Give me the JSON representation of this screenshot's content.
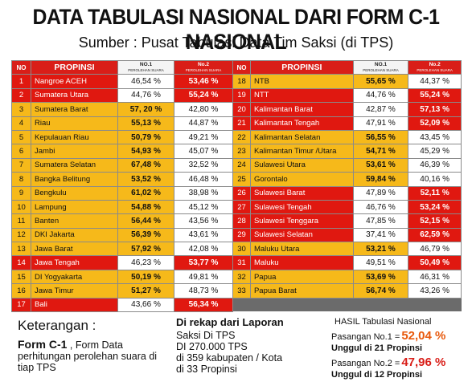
{
  "title": "DATA TABULASI NASIONAL DARI FORM C-1 NASIONAL",
  "subtitle": "Sumber : Pusat Tabulasi Data Tim Saksi (di TPS)",
  "table_headers": {
    "no": "NO",
    "propinsi": "PROPINSI",
    "no1": "NO.1",
    "no2": "No.2",
    "sub": "PEROLEHAN SUARA"
  },
  "left_rows": [
    {
      "no": "1",
      "name": "Nangroe ACEH",
      "v1": "46,54 %",
      "v2": "53,46 %",
      "win": 2
    },
    {
      "no": "2",
      "name": "Sumatera Utara",
      "v1": "44,76 %",
      "v2": "55,24 %",
      "win": 2
    },
    {
      "no": "3",
      "name": "Sumatera Barat",
      "v1": "57, 20 %",
      "v2": "42,80 %",
      "win": 1
    },
    {
      "no": "4",
      "name": "Riau",
      "v1": "55,13 %",
      "v2": "44,87 %",
      "win": 1
    },
    {
      "no": "5",
      "name": "Kepulauan Riau",
      "v1": "50,79 %",
      "v2": "49,21 %",
      "win": 1
    },
    {
      "no": "6",
      "name": "Jambi",
      "v1": "54,93 %",
      "v2": "45,07 %",
      "win": 1
    },
    {
      "no": "7",
      "name": "Sumatera Selatan",
      "v1": "67,48 %",
      "v2": "32,52 %",
      "win": 1
    },
    {
      "no": "8",
      "name": "Bangka Belitung",
      "v1": "53,52 %",
      "v2": "46,48 %",
      "win": 1
    },
    {
      "no": "9",
      "name": "Bengkulu",
      "v1": "61,02 %",
      "v2": "38,98 %",
      "win": 1
    },
    {
      "no": "10",
      "name": "Lampung",
      "v1": "54,88 %",
      "v2": "45,12 %",
      "win": 1
    },
    {
      "no": "11",
      "name": "Banten",
      "v1": "56,44 %",
      "v2": "43,56 %",
      "win": 1
    },
    {
      "no": "12",
      "name": "DKI Jakarta",
      "v1": "56,39 %",
      "v2": "43,61 %",
      "win": 1
    },
    {
      "no": "13",
      "name": "Jawa Barat",
      "v1": "57,92 %",
      "v2": "42,08 %",
      "win": 1
    },
    {
      "no": "14",
      "name": "Jawa Tengah",
      "v1": "46,23 %",
      "v2": "53,77 %",
      "win": 2
    },
    {
      "no": "15",
      "name": "DI Yogyakarta",
      "v1": "50,19 %",
      "v2": "49,81 %",
      "win": 1
    },
    {
      "no": "16",
      "name": "Jawa Timur",
      "v1": "51,27 %",
      "v2": "48,73 %",
      "win": 1
    },
    {
      "no": "17",
      "name": "Bali",
      "v1": "43,66 %",
      "v2": "56,34 %",
      "win": 2
    }
  ],
  "right_rows": [
    {
      "no": "18",
      "name": "NTB",
      "v1": "55,65 %",
      "v2": "44,37 %",
      "win": 1
    },
    {
      "no": "19",
      "name": "NTT",
      "v1": "44,76 %",
      "v2": "55,24 %",
      "win": 2
    },
    {
      "no": "20",
      "name": "Kalimantan Barat",
      "v1": "42,87 %",
      "v2": "57,13 %",
      "win": 2
    },
    {
      "no": "21",
      "name": "Kalimantan Tengah",
      "v1": "47,91 %",
      "v2": "52,09 %",
      "win": 2
    },
    {
      "no": "22",
      "name": "Kalimantan Selatan",
      "v1": "56,55 %",
      "v2": "43,45 %",
      "win": 1
    },
    {
      "no": "23",
      "name": "Kalimantan Timur /Utara",
      "v1": "54,71 %",
      "v2": "45,29 %",
      "win": 1
    },
    {
      "no": "24",
      "name": "Sulawesi Utara",
      "v1": "53,61 %",
      "v2": "46,39 %",
      "win": 1
    },
    {
      "no": "25",
      "name": "Gorontalo",
      "v1": "59,84 %",
      "v2": "40,16 %",
      "win": 1
    },
    {
      "no": "26",
      "name": "Sulawesi Barat",
      "v1": "47,89 %",
      "v2": "52,11 %",
      "win": 2
    },
    {
      "no": "27",
      "name": "Sulawesi Tengah",
      "v1": "46,76 %",
      "v2": "53,24 %",
      "win": 2
    },
    {
      "no": "28",
      "name": "Sulawesi Tenggara",
      "v1": "47,85 %",
      "v2": "52,15 %",
      "win": 2
    },
    {
      "no": "29",
      "name": "Sulawesi Selatan",
      "v1": "37,41 %",
      "v2": "62,59 %",
      "win": 2
    },
    {
      "no": "30",
      "name": "Maluku Utara",
      "v1": "53,21 %",
      "v2": "46,79 %",
      "win": 1
    },
    {
      "no": "31",
      "name": "Maluku",
      "v1": "49,51 %",
      "v2": "50,49 %",
      "win": 2
    },
    {
      "no": "32",
      "name": "Papua",
      "v1": "53,69 %",
      "v2": "46,31 %",
      "win": 1
    },
    {
      "no": "33",
      "name": "Papua Barat",
      "v1": "56,74 %",
      "v2": "43,26 %",
      "win": 1
    }
  ],
  "legend": {
    "heading": "Keterangan :",
    "form": "Form C-1",
    "desc": " , Form Data perhitungan perolehan suara di tiap TPS"
  },
  "recap": {
    "heading": "Di rekap dari Laporan",
    "lines": [
      "Saksi Di TPS",
      "DI 270.000 TPS",
      "di 359 kabupaten / Kota",
      "di 33 Propinsi"
    ]
  },
  "result": {
    "heading": "HASIL Tabulasi Nasional",
    "p1_label": "Pasangan No.1 =",
    "p1_value": "52,04 %",
    "p1_win": "Unggul di 21 Propinsi",
    "p2_label": "Pasangan No.2 =",
    "p2_value": "47,96 %",
    "p2_win": "Unggul di 12 Propinsi"
  },
  "colors": {
    "red": "#e01810",
    "yellow": "#f6b91a",
    "orange_text": "#e8590c"
  }
}
